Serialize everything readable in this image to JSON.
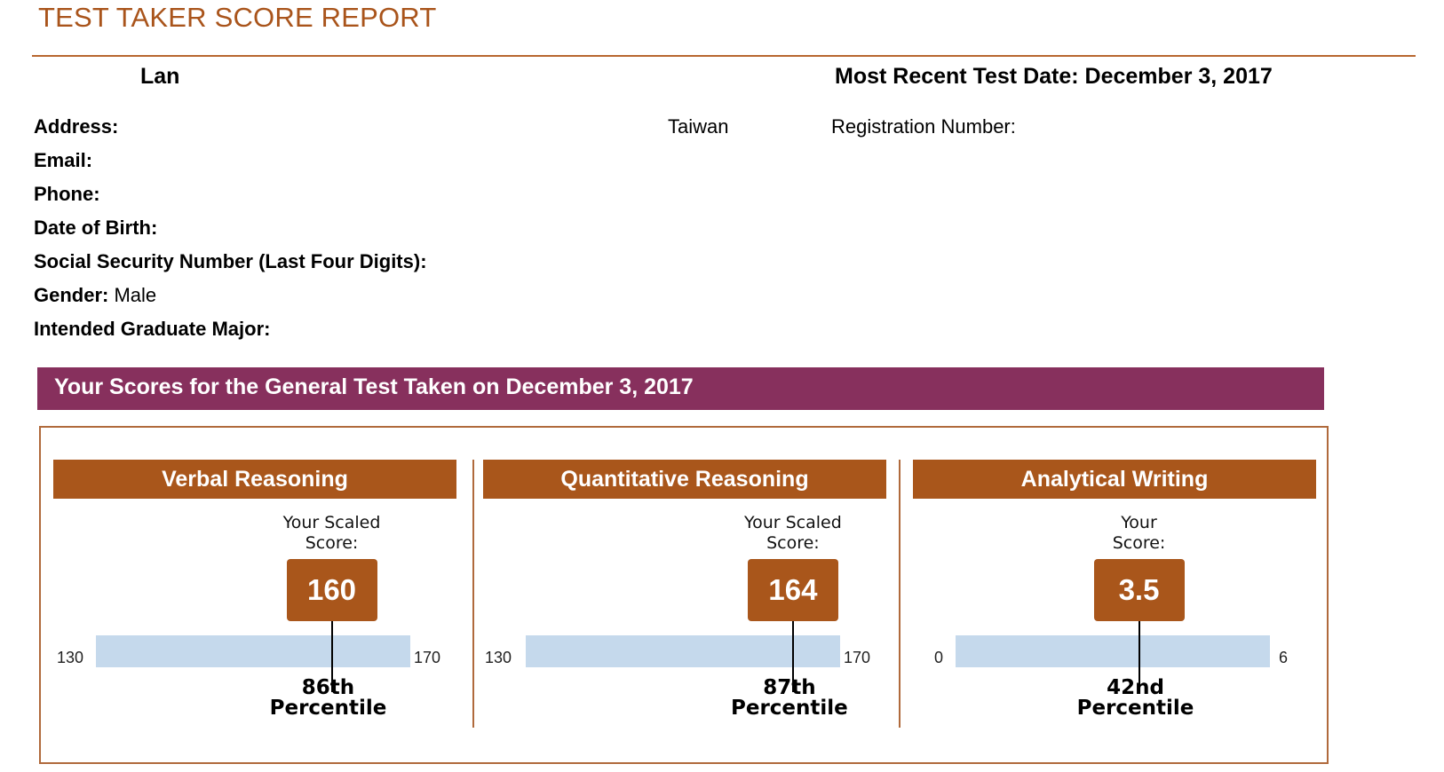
{
  "report": {
    "title": "TEST TAKER SCORE REPORT",
    "candidate_name": "Lan",
    "most_recent_test_date": "Most Recent Test Date: December 3, 2017"
  },
  "info": {
    "address_label": "Address:",
    "address_value": "Taiwan",
    "registration_label": "Registration Number:",
    "email_label": "Email:",
    "phone_label": "Phone:",
    "dob_label": "Date of Birth:",
    "ssn_label": "Social Security Number (Last Four Digits):",
    "gender_label": "Gender:",
    "gender_value": "Male",
    "major_label": "Intended Graduate Major:"
  },
  "scores_banner": "Your Scores for the General Test Taken on December 3, 2017",
  "sections": [
    {
      "name": "Verbal Reasoning",
      "caption_line1": "Your Scaled",
      "caption_line2": "Score:",
      "score": "160",
      "score_value": 160,
      "min": "130",
      "max": "170",
      "min_value": 130,
      "max_value": 170,
      "percentile_line1": "86th",
      "percentile_line2": "Percentile"
    },
    {
      "name": "Quantitative Reasoning",
      "caption_line1": "Your Scaled",
      "caption_line2": "Score:",
      "score": "164",
      "score_value": 164,
      "min": "130",
      "max": "170",
      "min_value": 130,
      "max_value": 170,
      "percentile_line1": "87th",
      "percentile_line2": "Percentile"
    },
    {
      "name": "Analytical Writing",
      "caption_line1": "Your",
      "caption_line2": "Score:",
      "score": "3.5",
      "score_value": 3.5,
      "min": "0",
      "max": "6",
      "min_value": 0,
      "max_value": 6,
      "percentile_line1": "42nd",
      "percentile_line2": "Percentile"
    }
  ],
  "colors": {
    "accent_brown": "#a9561b",
    "banner_purple": "#87305d",
    "scale_blue": "#c5d9ec"
  }
}
